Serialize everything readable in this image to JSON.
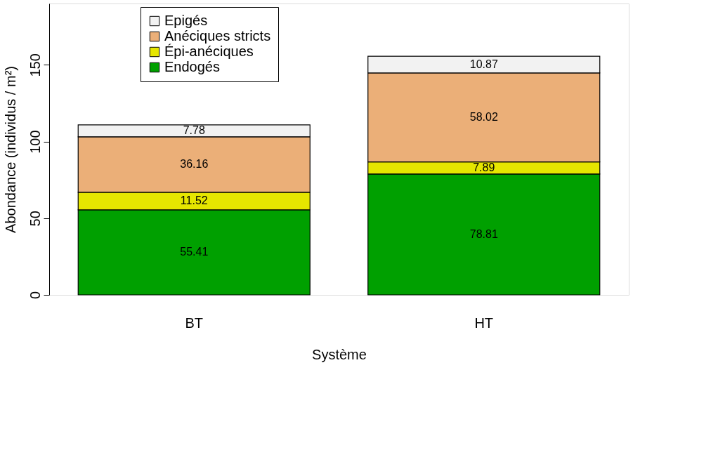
{
  "chart_data": {
    "type": "bar",
    "stacked": true,
    "xlabel": "Système",
    "ylabel": "Abondance (individus / m²)",
    "categories": [
      "BT",
      "HT"
    ],
    "series": [
      {
        "name": "Endogés",
        "color": "#00a000",
        "values": [
          55.41,
          78.81
        ]
      },
      {
        "name": "Épi-anéciques",
        "color": "#e6e600",
        "values": [
          11.52,
          7.89
        ]
      },
      {
        "name": "Anéciques stricts",
        "color": "#ebaf78",
        "values": [
          36.16,
          58.02
        ]
      },
      {
        "name": "Epigés",
        "color": "#f2f2f2",
        "values": [
          7.78,
          10.87
        ]
      }
    ],
    "ylim": [
      0,
      190
    ],
    "yticks": [
      0,
      50,
      100,
      150
    ],
    "grid": false,
    "legend": "top left",
    "data_labels": true
  }
}
